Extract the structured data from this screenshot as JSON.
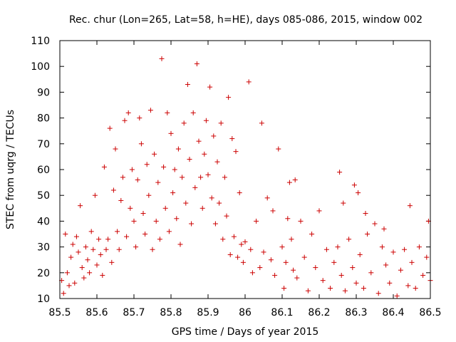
{
  "chart_data": {
    "type": "scatter",
    "title": "Rec. chur (Lon=265, Lat=58, h=HE), days 085-086, 2015, window 002",
    "xlabel": "GPS time / Days of year 2015",
    "ylabel": "STEC from uqrg / TECUs",
    "xlim": [
      85.5,
      86.5
    ],
    "ylim": [
      10,
      110
    ],
    "xticks": [
      "85.5",
      "85.6",
      "85.7",
      "85.8",
      "85.9",
      "86",
      "86.1",
      "86.2",
      "86.3",
      "86.4",
      "86.5"
    ],
    "yticks": [
      "10",
      "20",
      "30",
      "40",
      "50",
      "60",
      "70",
      "80",
      "90",
      "100",
      "110"
    ],
    "grid": false,
    "marker": "plus",
    "colors": {
      "series": "#cc0000",
      "axes": "#000000"
    },
    "series": [
      {
        "name": "STEC",
        "points": [
          [
            85.505,
            17
          ],
          [
            85.51,
            12
          ],
          [
            85.515,
            35
          ],
          [
            85.52,
            20
          ],
          [
            85.525,
            15
          ],
          [
            85.53,
            26
          ],
          [
            85.535,
            31
          ],
          [
            85.54,
            16
          ],
          [
            85.545,
            34
          ],
          [
            85.55,
            28
          ],
          [
            85.555,
            46
          ],
          [
            85.56,
            22
          ],
          [
            85.565,
            18
          ],
          [
            85.57,
            30
          ],
          [
            85.575,
            25
          ],
          [
            85.58,
            20
          ],
          [
            85.585,
            36
          ],
          [
            85.59,
            29
          ],
          [
            85.595,
            50
          ],
          [
            85.6,
            23
          ],
          [
            85.605,
            33
          ],
          [
            85.61,
            27
          ],
          [
            85.615,
            19
          ],
          [
            85.62,
            61
          ],
          [
            85.625,
            29
          ],
          [
            85.63,
            33
          ],
          [
            85.635,
            76
          ],
          [
            85.64,
            24
          ],
          [
            85.645,
            52
          ],
          [
            85.65,
            68
          ],
          [
            85.655,
            36
          ],
          [
            85.66,
            29
          ],
          [
            85.665,
            48
          ],
          [
            85.67,
            57
          ],
          [
            85.675,
            79
          ],
          [
            85.68,
            34
          ],
          [
            85.685,
            82
          ],
          [
            85.69,
            45
          ],
          [
            85.695,
            60
          ],
          [
            85.7,
            40
          ],
          [
            85.705,
            30
          ],
          [
            85.71,
            56
          ],
          [
            85.715,
            80
          ],
          [
            85.72,
            70
          ],
          [
            85.725,
            43
          ],
          [
            85.73,
            35
          ],
          [
            85.735,
            62
          ],
          [
            85.74,
            50
          ],
          [
            85.745,
            83
          ],
          [
            85.75,
            29
          ],
          [
            85.755,
            66
          ],
          [
            85.76,
            40
          ],
          [
            85.765,
            55
          ],
          [
            85.77,
            33
          ],
          [
            85.775,
            103
          ],
          [
            85.78,
            61
          ],
          [
            85.785,
            45
          ],
          [
            85.79,
            82
          ],
          [
            85.795,
            36
          ],
          [
            85.8,
            74
          ],
          [
            85.805,
            51
          ],
          [
            85.81,
            60
          ],
          [
            85.815,
            41
          ],
          [
            85.82,
            68
          ],
          [
            85.825,
            31
          ],
          [
            85.83,
            57
          ],
          [
            85.835,
            78
          ],
          [
            85.84,
            47
          ],
          [
            85.845,
            93
          ],
          [
            85.85,
            64
          ],
          [
            85.855,
            39
          ],
          [
            85.86,
            82
          ],
          [
            85.865,
            53
          ],
          [
            85.87,
            101
          ],
          [
            85.875,
            71
          ],
          [
            85.88,
            57
          ],
          [
            85.885,
            45
          ],
          [
            85.89,
            66
          ],
          [
            85.895,
            79
          ],
          [
            85.9,
            58
          ],
          [
            85.905,
            92
          ],
          [
            85.91,
            49
          ],
          [
            85.915,
            73
          ],
          [
            85.92,
            39
          ],
          [
            85.925,
            63
          ],
          [
            85.93,
            47
          ],
          [
            85.935,
            78
          ],
          [
            85.94,
            33
          ],
          [
            85.945,
            57
          ],
          [
            85.95,
            42
          ],
          [
            85.955,
            88
          ],
          [
            85.96,
            27
          ],
          [
            85.965,
            72
          ],
          [
            85.97,
            34
          ],
          [
            85.975,
            67
          ],
          [
            85.98,
            26
          ],
          [
            85.985,
            51
          ],
          [
            85.99,
            31
          ],
          [
            85.995,
            24
          ],
          [
            86.0,
            32
          ],
          [
            86.01,
            94
          ],
          [
            86.015,
            29
          ],
          [
            86.02,
            20
          ],
          [
            86.03,
            40
          ],
          [
            86.04,
            22
          ],
          [
            86.045,
            78
          ],
          [
            86.05,
            28
          ],
          [
            86.06,
            49
          ],
          [
            86.07,
            25
          ],
          [
            86.075,
            44
          ],
          [
            86.08,
            19
          ],
          [
            86.09,
            68
          ],
          [
            86.1,
            30
          ],
          [
            86.105,
            14
          ],
          [
            86.11,
            24
          ],
          [
            86.115,
            41
          ],
          [
            86.12,
            55
          ],
          [
            86.125,
            33
          ],
          [
            86.13,
            21
          ],
          [
            86.135,
            56
          ],
          [
            86.14,
            18
          ],
          [
            86.15,
            40
          ],
          [
            86.16,
            26
          ],
          [
            86.17,
            13
          ],
          [
            86.18,
            35
          ],
          [
            86.19,
            22
          ],
          [
            86.2,
            44
          ],
          [
            86.21,
            17
          ],
          [
            86.22,
            29
          ],
          [
            86.23,
            14
          ],
          [
            86.24,
            24
          ],
          [
            86.25,
            30
          ],
          [
            86.255,
            59
          ],
          [
            86.26,
            19
          ],
          [
            86.265,
            47
          ],
          [
            86.27,
            13
          ],
          [
            86.28,
            33
          ],
          [
            86.29,
            22
          ],
          [
            86.295,
            54
          ],
          [
            86.3,
            16
          ],
          [
            86.305,
            51
          ],
          [
            86.31,
            27
          ],
          [
            86.32,
            14
          ],
          [
            86.325,
            43
          ],
          [
            86.33,
            35
          ],
          [
            86.34,
            20
          ],
          [
            86.35,
            39
          ],
          [
            86.36,
            12
          ],
          [
            86.37,
            30
          ],
          [
            86.375,
            37
          ],
          [
            86.38,
            23
          ],
          [
            86.39,
            16
          ],
          [
            86.4,
            28
          ],
          [
            86.41,
            11
          ],
          [
            86.42,
            21
          ],
          [
            86.43,
            29
          ],
          [
            86.44,
            15
          ],
          [
            86.445,
            46
          ],
          [
            86.45,
            24
          ],
          [
            86.46,
            14
          ],
          [
            86.47,
            30
          ],
          [
            86.48,
            19
          ],
          [
            86.49,
            26
          ],
          [
            86.495,
            40
          ],
          [
            86.5,
            17
          ]
        ]
      }
    ]
  }
}
